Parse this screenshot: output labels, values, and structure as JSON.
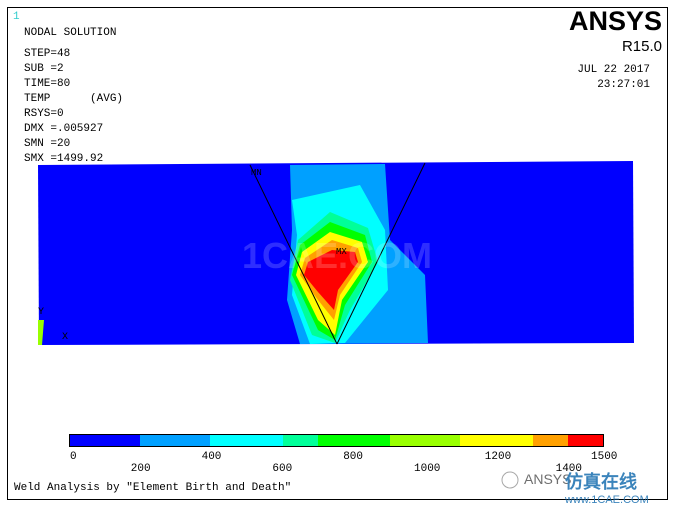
{
  "window_number": "1",
  "header": {
    "title": "NODAL SOLUTION",
    "lines": [
      "STEP=48",
      "SUB =2",
      "TIME=80",
      "TEMP      (AVG)",
      "RSYS=0",
      "DMX =.005927",
      "SMN =20",
      "SMX =1499.92"
    ]
  },
  "logo": {
    "name": "ANSYS",
    "version": "R15.0",
    "date": "JUL 22 2017",
    "time": "23:27:01"
  },
  "plot": {
    "min_label": "MN",
    "max_label": "MX",
    "axis_y": "Y",
    "axis_x": "X",
    "watermark": "1CAE.COM"
  },
  "legend": {
    "ticks": [
      0,
      200,
      400,
      600,
      800,
      1000,
      1200,
      1400,
      1500
    ],
    "colors": [
      "#0000ff",
      "#00a0ff",
      "#00ffff",
      "#00ff99",
      "#00ff00",
      "#99ff00",
      "#ffff00",
      "#ffa000",
      "#ff0000"
    ]
  },
  "footer": {
    "title": "Weld Analysis by \"Element Birth and Death\""
  },
  "corner_watermark": {
    "brand": "ANSYS",
    "site_name": "仿真在线",
    "url": "www.1CAE.COM"
  }
}
